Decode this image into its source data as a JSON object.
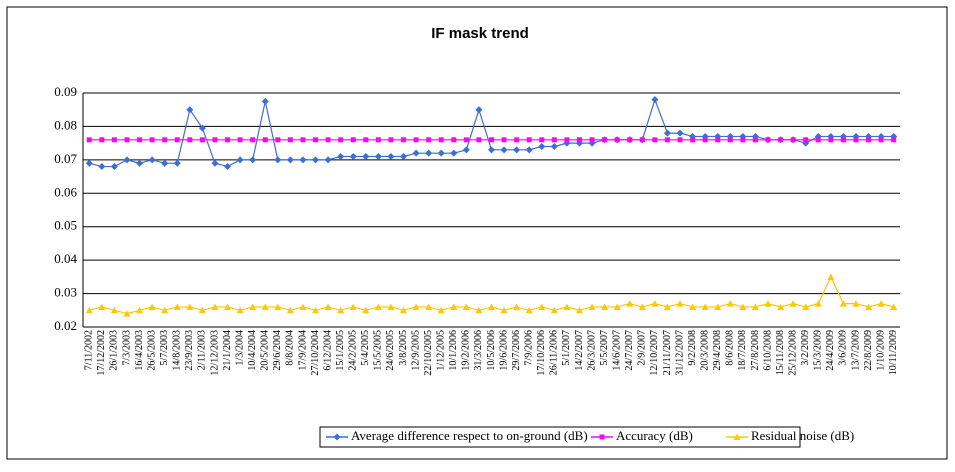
{
  "chart_data": {
    "type": "line",
    "title": "IF mask trend",
    "categories": [
      "7/11/2002",
      "17/12/2002",
      "26/1/2003",
      "7/3/2003",
      "16/4/2003",
      "26/5/2003",
      "5/7/2003",
      "14/8/2003",
      "23/9/2003",
      "2/11/2003",
      "12/12/2003",
      "21/1/2004",
      "1/3/2004",
      "10/4/2004",
      "20/5/2004",
      "29/6/2004",
      "8/8/2004",
      "17/9/2004",
      "27/10/2004",
      "6/12/2004",
      "15/1/2005",
      "24/2/2005",
      "5/4/2005",
      "15/5/2005",
      "24/6/2005",
      "3/8/2005",
      "12/9/2005",
      "22/10/2005",
      "1/12/2005",
      "10/1/2006",
      "19/2/2006",
      "31/3/2006",
      "10/5/2006",
      "19/6/2006",
      "29/7/2006",
      "7/9/2006",
      "17/10/2006",
      "26/11/2006",
      "5/1/2007",
      "14/2/2007",
      "26/3/2007",
      "5/5/2007",
      "14/6/2007",
      "24/7/2007",
      "2/9/2007",
      "12/10/2007",
      "21/11/2007",
      "31/12/2007",
      "9/2/2008",
      "20/3/2008",
      "29/4/2008",
      "8/6/2008",
      "18/7/2008",
      "27/8/2008",
      "6/10/2008",
      "15/11/2008",
      "25/12/2008",
      "3/2/2009",
      "15/3/2009",
      "24/4/2009",
      "3/6/2009",
      "13/7/2009",
      "22/8/2009",
      "1/10/2009",
      "10/11/2009"
    ],
    "series": [
      {
        "name": "Average difference respect to on-ground (dB)",
        "color": "#3a6fd8",
        "marker": "diamond",
        "values": [
          0.069,
          0.068,
          0.068,
          0.07,
          0.069,
          0.07,
          0.069,
          0.069,
          0.085,
          0.0795,
          0.069,
          0.068,
          0.07,
          0.07,
          0.0875,
          0.07,
          0.07,
          0.07,
          0.07,
          0.07,
          0.071,
          0.071,
          0.071,
          0.071,
          0.071,
          0.071,
          0.072,
          0.072,
          0.072,
          0.072,
          0.073,
          0.085,
          0.073,
          0.073,
          0.073,
          0.073,
          0.074,
          0.074,
          0.075,
          0.075,
          0.075,
          0.076,
          0.076,
          0.076,
          0.076,
          0.088,
          0.078,
          0.078,
          0.077,
          0.077,
          0.077,
          0.077,
          0.077,
          0.077,
          0.076,
          0.076,
          0.076,
          0.075,
          0.077,
          0.077,
          0.077,
          0.077,
          0.077,
          0.077,
          0.077
        ]
      },
      {
        "name": "Accuracy (dB)",
        "color": "#ff00ff",
        "marker": "square",
        "values": [
          0.076,
          0.076,
          0.076,
          0.076,
          0.076,
          0.076,
          0.076,
          0.076,
          0.076,
          0.076,
          0.076,
          0.076,
          0.076,
          0.076,
          0.076,
          0.076,
          0.076,
          0.076,
          0.076,
          0.076,
          0.076,
          0.076,
          0.076,
          0.076,
          0.076,
          0.076,
          0.076,
          0.076,
          0.076,
          0.076,
          0.076,
          0.076,
          0.076,
          0.076,
          0.076,
          0.076,
          0.076,
          0.076,
          0.076,
          0.076,
          0.076,
          0.076,
          0.076,
          0.076,
          0.076,
          0.076,
          0.076,
          0.076,
          0.076,
          0.076,
          0.076,
          0.076,
          0.076,
          0.076,
          0.076,
          0.076,
          0.076,
          0.076,
          0.076,
          0.076,
          0.076,
          0.076,
          0.076,
          0.076,
          0.076
        ]
      },
      {
        "name": "Residual noise (dB)",
        "color": "#ffc800",
        "marker": "triangle",
        "values": [
          0.025,
          0.026,
          0.025,
          0.024,
          0.025,
          0.026,
          0.025,
          0.026,
          0.026,
          0.025,
          0.026,
          0.026,
          0.025,
          0.026,
          0.026,
          0.026,
          0.025,
          0.026,
          0.025,
          0.026,
          0.025,
          0.026,
          0.025,
          0.026,
          0.026,
          0.025,
          0.026,
          0.026,
          0.025,
          0.026,
          0.026,
          0.025,
          0.026,
          0.025,
          0.026,
          0.025,
          0.026,
          0.025,
          0.026,
          0.025,
          0.026,
          0.026,
          0.026,
          0.027,
          0.026,
          0.027,
          0.026,
          0.027,
          0.026,
          0.026,
          0.026,
          0.027,
          0.026,
          0.026,
          0.027,
          0.026,
          0.027,
          0.026,
          0.027,
          0.035,
          0.027,
          0.027,
          0.026,
          0.027,
          0.026
        ]
      }
    ],
    "ylim": [
      0.02,
      0.09
    ],
    "yticks": [
      0.02,
      0.03,
      0.04,
      0.05,
      0.06,
      0.07,
      0.08,
      0.09
    ],
    "grid": true,
    "legend": "bottom"
  }
}
